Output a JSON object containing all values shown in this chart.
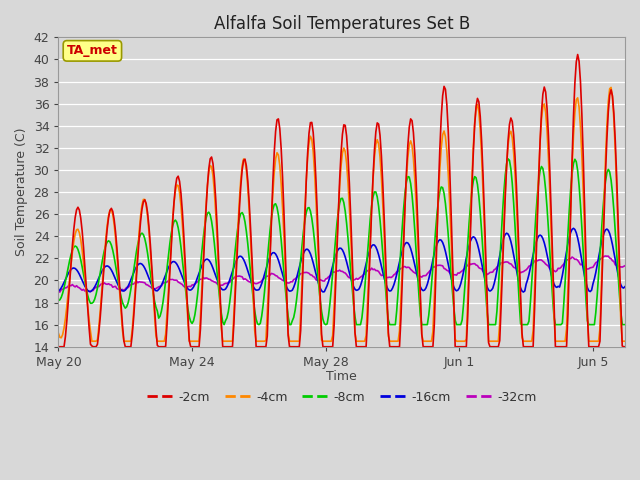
{
  "title": "Alfalfa Soil Temperatures Set B",
  "ylabel": "Soil Temperature (C)",
  "xlabel": "Time",
  "ylim": [
    14,
    42
  ],
  "yticks": [
    14,
    16,
    18,
    20,
    22,
    24,
    26,
    28,
    30,
    32,
    34,
    36,
    38,
    40,
    42
  ],
  "bg_color": "#d8d8d8",
  "series": [
    {
      "label": "-2cm",
      "color": "#dd0000",
      "lw": 1.2
    },
    {
      "label": "-4cm",
      "color": "#ff8800",
      "lw": 1.2
    },
    {
      "label": "-8cm",
      "color": "#00cc00",
      "lw": 1.2
    },
    {
      "label": "-16cm",
      "color": "#0000dd",
      "lw": 1.2
    },
    {
      "label": "-32cm",
      "color": "#bb00bb",
      "lw": 1.2
    }
  ],
  "annotation": {
    "text": "TA_met",
    "color": "#cc0000",
    "bg": "#ffff88",
    "edgecolor": "#999900"
  },
  "x_tick_labels": [
    "May 20",
    "May 24",
    "May 28",
    "Jun 1",
    "Jun 5"
  ],
  "x_tick_days": [
    0,
    4,
    8,
    12,
    16
  ]
}
